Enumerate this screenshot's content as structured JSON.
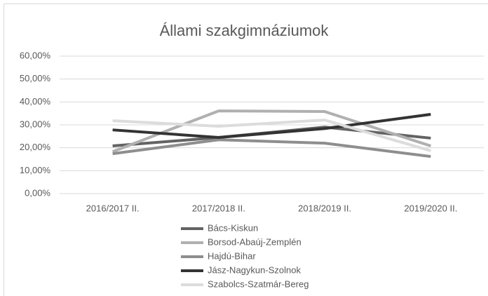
{
  "chart_data": {
    "type": "line",
    "title": "Állami szakgimnáziumok",
    "categories": [
      "2016/2017 II.",
      "2017/2018 II.",
      "2018/2019 II.",
      "2019/2020 II."
    ],
    "series": [
      {
        "name": "Bács-Kiskun",
        "color": "#636363",
        "values": [
          20.8,
          24.5,
          29.0,
          24.2
        ]
      },
      {
        "name": "Borsod-Abaúj-Zemplén",
        "color": "#b0b0b0",
        "values": [
          18.3,
          36.1,
          35.8,
          20.8
        ]
      },
      {
        "name": "Hajdú-Bihar",
        "color": "#8e8e8e",
        "values": [
          17.4,
          23.5,
          22.0,
          16.2
        ]
      },
      {
        "name": "Jász-Nagykun-Szolnok",
        "color": "#333333",
        "values": [
          27.8,
          24.5,
          28.4,
          34.6
        ]
      },
      {
        "name": "Szabolcs-Szatmár-Bereg",
        "color": "#dcdcdc",
        "values": [
          31.8,
          29.4,
          32.1,
          18.7
        ]
      }
    ],
    "ylim": [
      0,
      60
    ],
    "yticks": [
      {
        "value": 0,
        "label": "0,00%"
      },
      {
        "value": 10,
        "label": "10,00%"
      },
      {
        "value": 20,
        "label": "20,00%"
      },
      {
        "value": 30,
        "label": "30,00%"
      },
      {
        "value": 40,
        "label": "40,00%"
      },
      {
        "value": 50,
        "label": "50,00%"
      },
      {
        "value": 60,
        "label": "60,00%"
      }
    ],
    "grid": true,
    "legend": "bottom"
  }
}
